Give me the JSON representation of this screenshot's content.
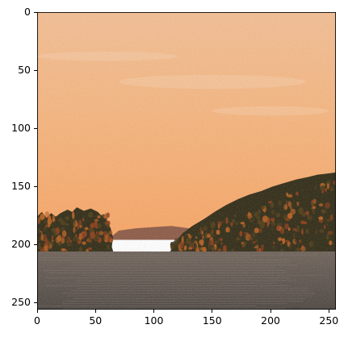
{
  "axes": {
    "x_ticks": [
      "0",
      "50",
      "100",
      "150",
      "200",
      "250"
    ],
    "y_ticks": [
      "0",
      "50",
      "100",
      "150",
      "200",
      "250"
    ],
    "x_tick_values": [
      0,
      50,
      100,
      150,
      200,
      250
    ],
    "y_tick_values": [
      0,
      50,
      100,
      150,
      200,
      250
    ],
    "xlim": [
      0,
      256
    ],
    "ylim": [
      256,
      0
    ]
  },
  "image": {
    "content": "sunset-lake-with-forested-shores",
    "colors": {
      "sky_top": "#f3be93",
      "sky_mid": "#f6b47c",
      "sky_low": "#f8a564",
      "haze": "#e9a36d",
      "far_hills": "#8c5a45",
      "forest_dark": "#2f2a14",
      "forest_mid": "#4d3a15",
      "autumn_red": "#8a3b16",
      "autumn_orange": "#b45d1e",
      "water_top": "#6e6259",
      "water_bottom": "#4c4540"
    }
  }
}
